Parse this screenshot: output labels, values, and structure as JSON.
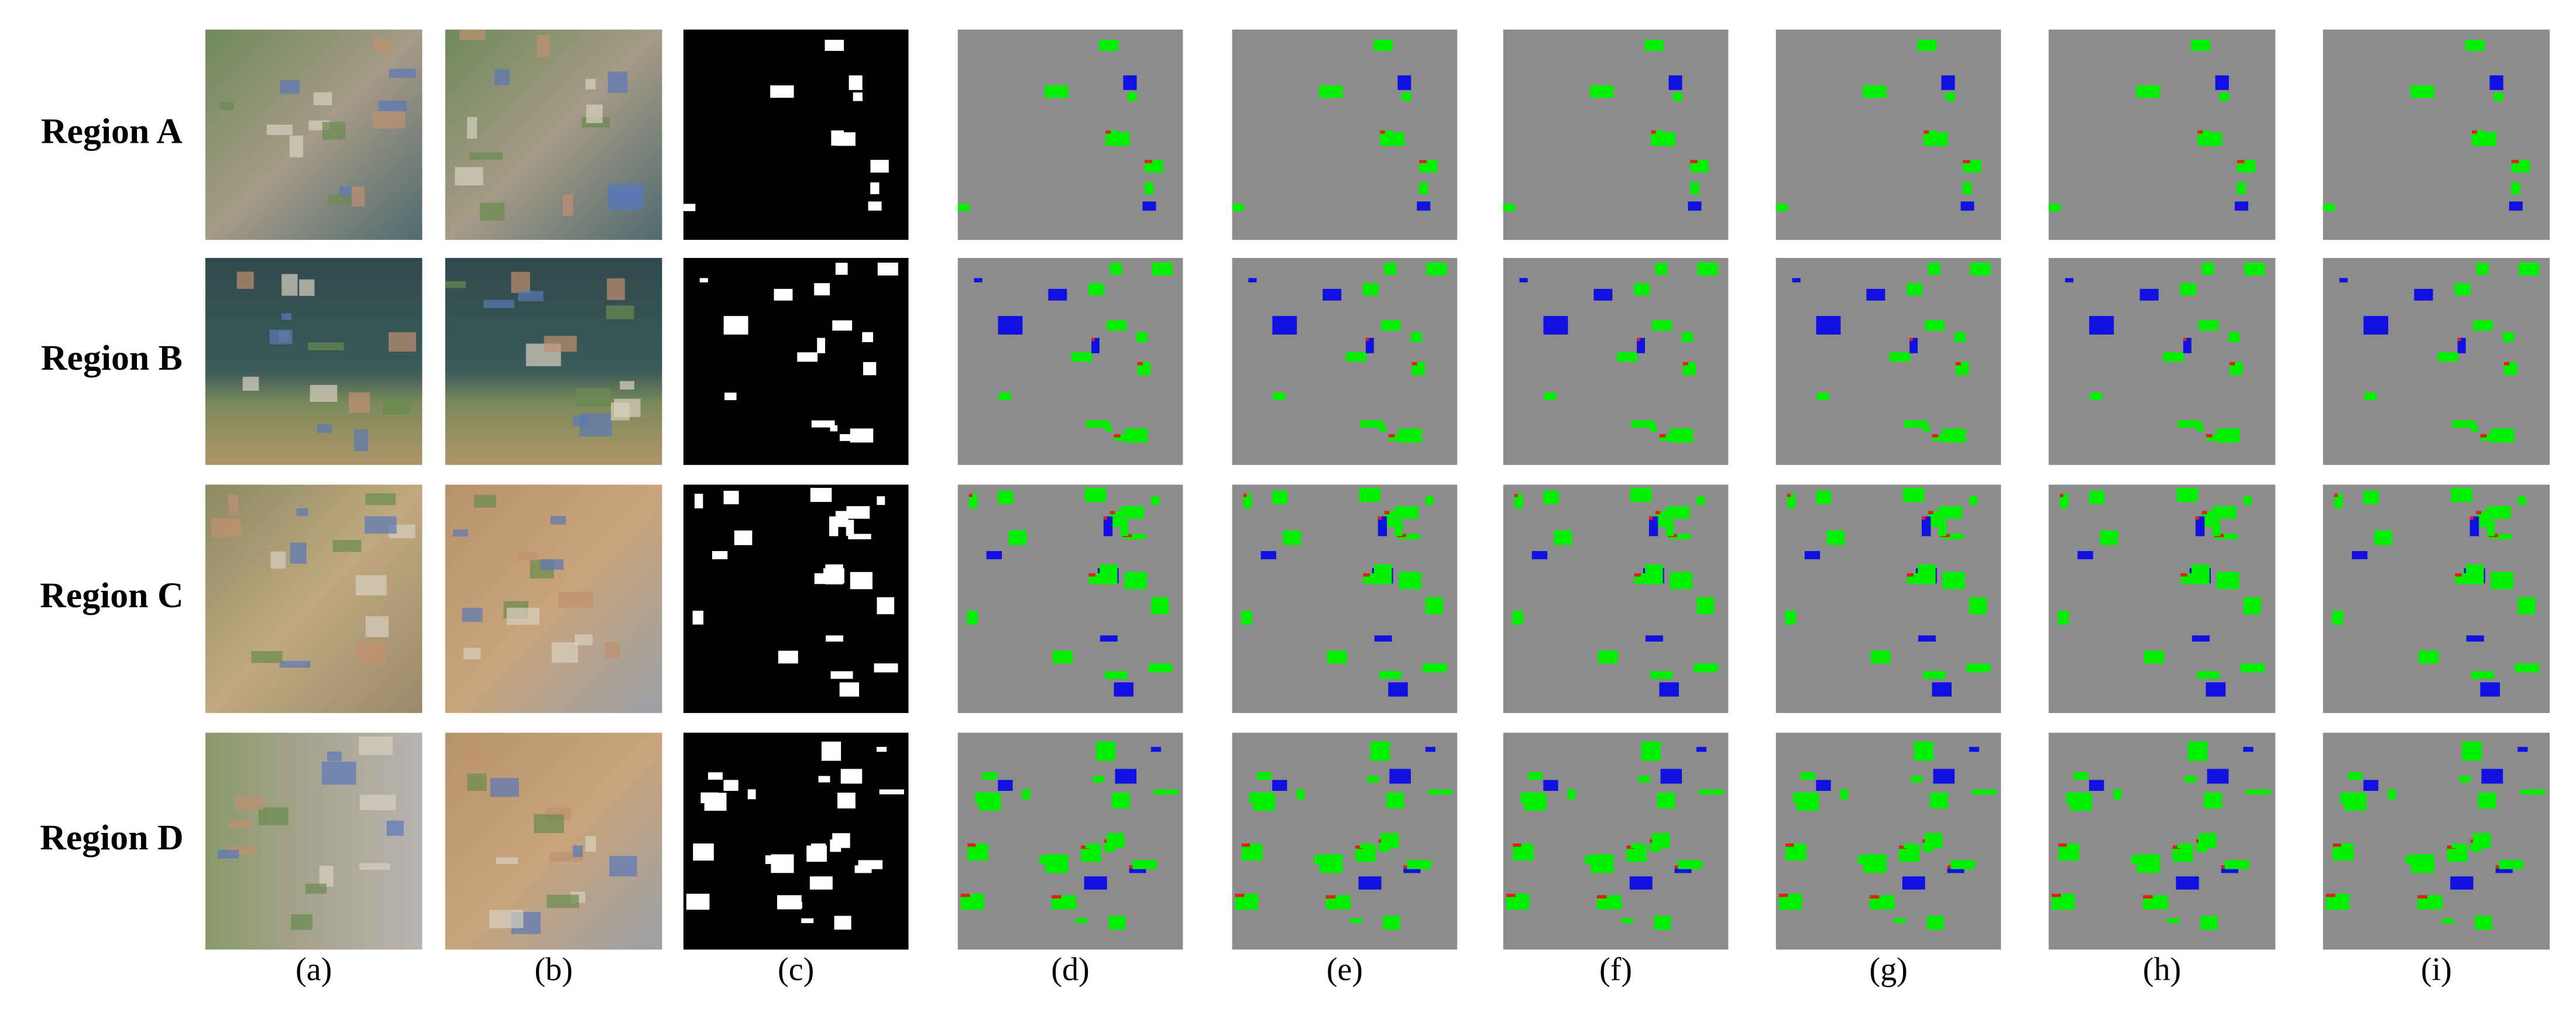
{
  "row_labels": [
    "Region A",
    "Region B",
    "Region C",
    "Region D"
  ],
  "column_labels": [
    "(a)",
    "(b)",
    "(c)",
    "(d)",
    "(e)",
    "(f)",
    "(g)",
    "(h)",
    "(i)"
  ]
}
